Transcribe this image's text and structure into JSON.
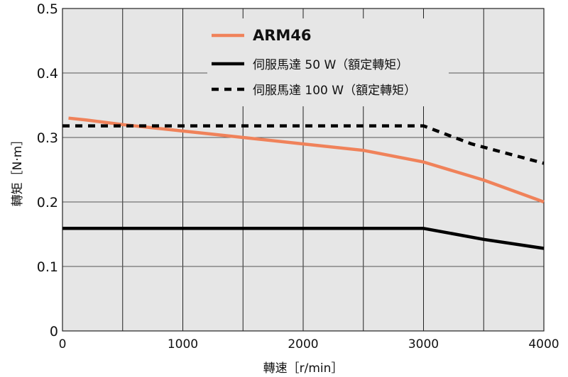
{
  "chart_data": {
    "type": "line",
    "xlabel": "轉速［r/min］",
    "ylabel": "轉矩［N·m］",
    "xlim": [
      0,
      4000
    ],
    "ylim": [
      0,
      0.5
    ],
    "x_ticks": [
      "0",
      "1000",
      "2000",
      "3000",
      "4000"
    ],
    "y_ticks": [
      "0",
      "0.1",
      "0.2",
      "0.3",
      "0.4",
      "0.5"
    ],
    "grid": true,
    "legend": "top-right",
    "series": [
      {
        "name": "ARM46",
        "color": "#f0825a",
        "style": "solid",
        "x": [
          50,
          200,
          500,
          1000,
          1500,
          2000,
          2500,
          3000,
          3500,
          4000
        ],
        "y": [
          0.33,
          0.327,
          0.32,
          0.31,
          0.3,
          0.29,
          0.28,
          0.262,
          0.234,
          0.2
        ]
      },
      {
        "name": "伺服馬達 50 W（額定轉矩）",
        "color": "#000000",
        "style": "solid",
        "x": [
          0,
          3000,
          3500,
          4000
        ],
        "y": [
          0.159,
          0.159,
          0.142,
          0.128
        ]
      },
      {
        "name": "伺服馬達 100 W（額定轉矩）",
        "color": "#000000",
        "style": "dashed",
        "x": [
          0,
          3000,
          3400,
          4000
        ],
        "y": [
          0.318,
          0.318,
          0.29,
          0.26
        ]
      }
    ]
  }
}
